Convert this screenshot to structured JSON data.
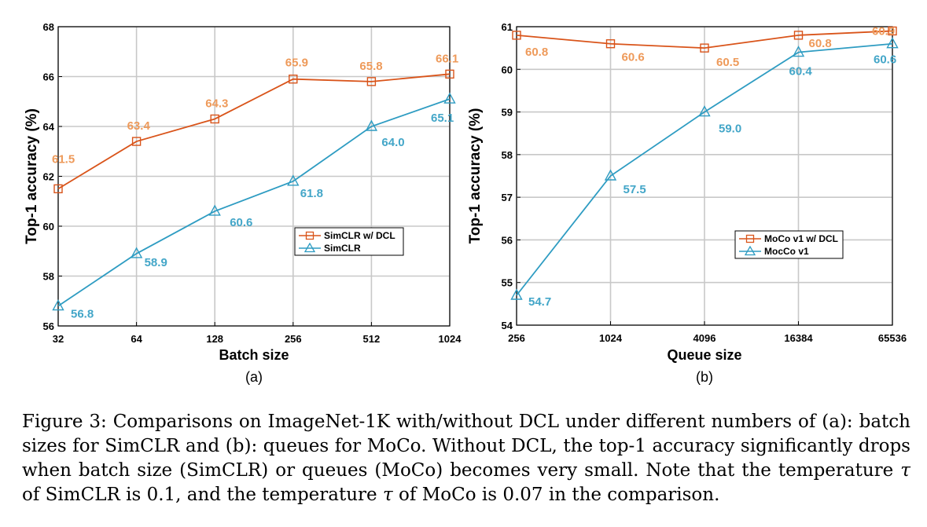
{
  "colors": {
    "orange": "#D9541A",
    "blue": "#2E9CC2",
    "orange_label": "#EE9A5A",
    "blue_label": "#43A6C8"
  },
  "chart_data": [
    {
      "type": "line",
      "xlabel": "Batch size",
      "ylabel": "Top-1 accuracy (%)",
      "panel_label": "(a)",
      "categories": [
        "32",
        "64",
        "128",
        "256",
        "512",
        "1024"
      ],
      "ylim": [
        56,
        68
      ],
      "yticks": [
        "56",
        "58",
        "60",
        "62",
        "64",
        "66",
        "68"
      ],
      "grid": true,
      "legend_position": "center-right",
      "series": [
        {
          "name": "SimCLR w/ DCL",
          "marker": "square",
          "color": "#D9541A",
          "values": [
            61.5,
            63.4,
            64.3,
            65.9,
            65.8,
            66.1
          ],
          "labels": [
            "61.5",
            "63.4",
            "64.3",
            "65.9",
            "65.8",
            "66.1"
          ]
        },
        {
          "name": "SimCLR",
          "marker": "triangle",
          "color": "#2E9CC2",
          "values": [
            56.8,
            58.9,
            60.6,
            61.8,
            64.0,
            65.1
          ],
          "labels": [
            "56.8",
            "58.9",
            "60.6",
            "61.8",
            "64.0",
            "65.1"
          ]
        }
      ]
    },
    {
      "type": "line",
      "xlabel": "Queue size",
      "ylabel": "Top-1 accuracy (%)",
      "panel_label": "(b)",
      "categories": [
        "256",
        "1024",
        "4096",
        "16384",
        "65536"
      ],
      "ylim": [
        54,
        61
      ],
      "yticks": [
        "54",
        "55",
        "56",
        "57",
        "58",
        "59",
        "60",
        "61"
      ],
      "grid": true,
      "legend_position": "center-right",
      "series": [
        {
          "name": "MoCo v1 w/ DCL",
          "marker": "square",
          "color": "#D9541A",
          "values": [
            60.8,
            60.6,
            60.5,
            60.8,
            60.9
          ],
          "labels": [
            "60.8",
            "60.6",
            "60.5",
            "60.8",
            "60.9"
          ]
        },
        {
          "name": "MocCo v1",
          "marker": "triangle",
          "color": "#2E9CC2",
          "values": [
            54.7,
            57.5,
            59.0,
            60.4,
            60.6
          ],
          "labels": [
            "54.7",
            "57.5",
            "59.0",
            "60.4",
            "60.6"
          ]
        }
      ]
    }
  ],
  "caption": {
    "prefix": "Figure 3: Comparisons on ImageNet-1K with/without DCL under different numbers of (a): batch sizes for SimCLR and (b): queues for MoCo. Without DCL, the top-1 accuracy significantly drops when batch size (SimCLR) or queues (MoCo) becomes very small. Note that the temperature ",
    "tau1": "τ",
    "middle": " of SimCLR is 0.1, and the temperature ",
    "tau2": "τ",
    "suffix": " of MoCo is 0.07 in the comparison."
  }
}
